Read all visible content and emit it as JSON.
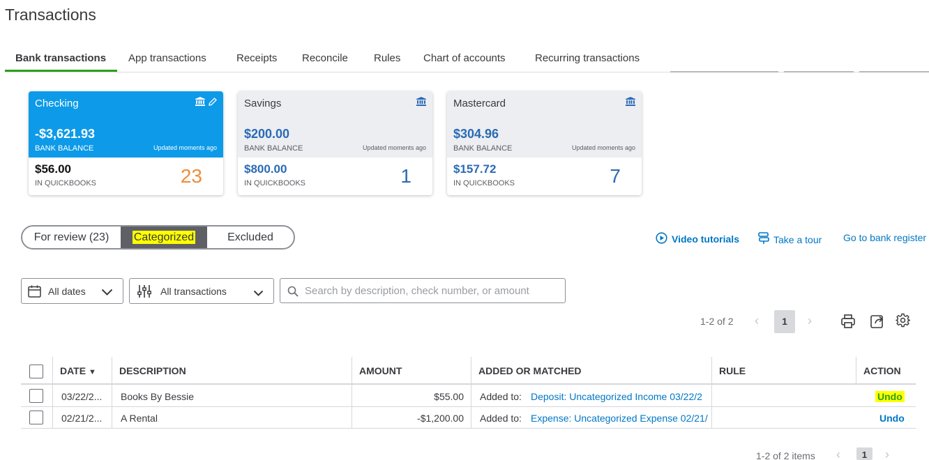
{
  "page": {
    "title": "Transactions"
  },
  "tabs": [
    {
      "label": "Bank transactions",
      "active": true
    },
    {
      "label": "App transactions"
    },
    {
      "label": "Receipts"
    },
    {
      "label": "Reconcile"
    },
    {
      "label": "Rules"
    },
    {
      "label": "Chart of accounts"
    },
    {
      "label": "Recurring transactions"
    }
  ],
  "accounts": [
    {
      "name": "Checking",
      "bank_balance": "-$3,621.93",
      "bank_balance_label": "BANK BALANCE",
      "updated": "Updated moments ago",
      "qb_balance": "$56.00",
      "qb_label": "IN QUICKBOOKS",
      "count": "23",
      "selected": true
    },
    {
      "name": "Savings",
      "bank_balance": "$200.00",
      "bank_balance_label": "BANK BALANCE",
      "updated": "Updated moments ago",
      "qb_balance": "$800.00",
      "qb_label": "IN QUICKBOOKS",
      "count": "1"
    },
    {
      "name": "Mastercard",
      "bank_balance": "$304.96",
      "bank_balance_label": "BANK BALANCE",
      "updated": "Updated moments ago",
      "qb_balance": "$157.72",
      "qb_label": "IN QUICKBOOKS",
      "count": "7"
    }
  ],
  "segments": {
    "for_review": "For review (23)",
    "categorized": "Categorized",
    "excluded": "Excluded",
    "active": "Categorized"
  },
  "links": {
    "video_tutorials": "Video tutorials",
    "take_tour": "Take a tour",
    "bank_register": "Go to bank register"
  },
  "filters": {
    "dates": "All dates",
    "transactions": "All transactions",
    "search_placeholder": "Search by description, check number, or amount"
  },
  "pager_top": {
    "range": "1-2 of 2",
    "page": "1"
  },
  "table": {
    "headers": {
      "date": "DATE",
      "description": "DESCRIPTION",
      "amount": "AMOUNT",
      "added": "ADDED OR MATCHED",
      "rule": "RULE",
      "action": "ACTION"
    },
    "rows": [
      {
        "date": "03/22/2...",
        "description": "Books By Bessie",
        "amount": "$55.00",
        "added_prefix": "Added to:",
        "added_link": "Deposit: Uncategorized Income 03/22/2",
        "rule": "",
        "action": "Undo",
        "highlight": true
      },
      {
        "date": "02/21/2...",
        "description": "A Rental",
        "amount": "-$1,200.00",
        "added_prefix": "Added to:",
        "added_link": "Expense: Uncategorized Expense 02/21/",
        "rule": "",
        "action": "Undo",
        "highlight": false
      }
    ]
  },
  "pager_bottom": {
    "range": "1-2 of 2 items",
    "page": "1"
  },
  "colors": {
    "accent_green": "#2ca01c",
    "link_blue": "#0077c5",
    "selected_card": "#0d9ae8",
    "count_orange": "#f08c3a",
    "highlight": "#ffff00"
  }
}
